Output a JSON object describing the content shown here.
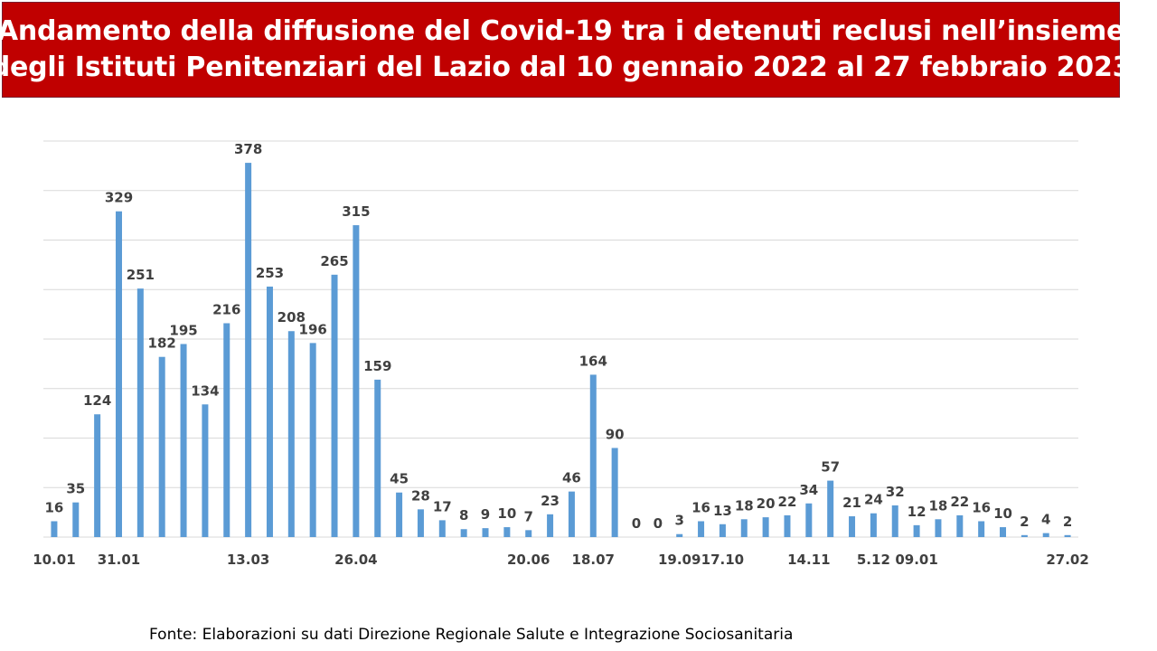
{
  "header": {
    "title_line1": "Andamento della diffusione del Covid-19 tra i detenuti reclusi nell’insieme",
    "title_line2": "degli Istituti Penitenziari del Lazio dal 10 gennaio 2022 al 27 febbraio 2023"
  },
  "source": "Fonte: Elaborazioni su dati Direzione Regionale Salute e Integrazione Sociosanitaria",
  "colors": {
    "title_bg": "#c00000",
    "bar": "#5b9bd5",
    "label": "#404040",
    "grid": "#d9d9d9"
  },
  "chart_data": {
    "type": "bar",
    "title": "Andamento della diffusione del Covid-19 tra i detenuti reclusi nell’insieme degli Istituti Penitenziari del Lazio dal 10 gennaio 2022 al 27 febbraio 2023",
    "values": [
      16,
      35,
      124,
      329,
      251,
      182,
      195,
      134,
      216,
      378,
      253,
      208,
      196,
      265,
      315,
      159,
      45,
      28,
      17,
      8,
      9,
      10,
      7,
      23,
      46,
      164,
      90,
      0,
      0,
      3,
      16,
      13,
      18,
      20,
      22,
      34,
      57,
      21,
      24,
      32,
      12,
      18,
      22,
      16,
      10,
      2,
      4,
      2
    ],
    "x_tick_labels": [
      {
        "index": 0,
        "label": "10.01"
      },
      {
        "index": 3,
        "label": "31.01"
      },
      {
        "index": 9,
        "label": "13.03"
      },
      {
        "index": 14,
        "label": "26.04"
      },
      {
        "index": 22,
        "label": "20.06"
      },
      {
        "index": 25,
        "label": "18.07"
      },
      {
        "index": 29,
        "label": "19.09"
      },
      {
        "index": 31,
        "label": "17.10"
      },
      {
        "index": 35,
        "label": "14.11"
      },
      {
        "index": 38,
        "label": "5.12"
      },
      {
        "index": 40,
        "label": "09.01"
      },
      {
        "index": 47,
        "label": "27.02"
      }
    ],
    "ylim": [
      0,
      400
    ],
    "gridlines": [
      50,
      100,
      150,
      200,
      250,
      300,
      350,
      400
    ],
    "data_labels": true,
    "legend": "none"
  }
}
